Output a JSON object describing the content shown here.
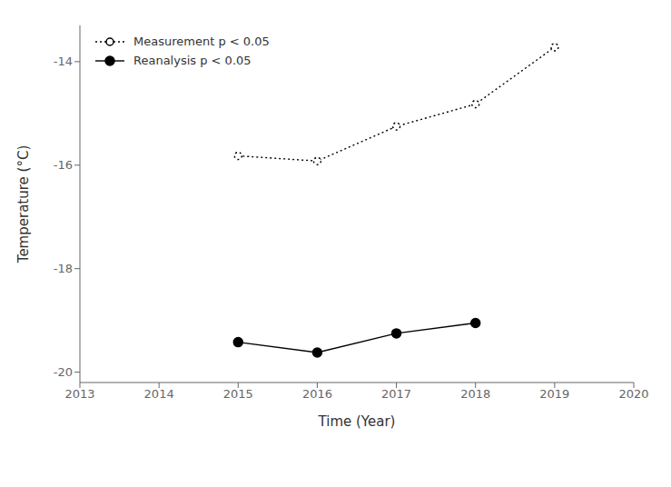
{
  "chart_data": {
    "type": "line",
    "x_label": "Time (Year)",
    "y_label": "Temperature (°C)",
    "x": [
      2015,
      2016,
      2017,
      2018,
      2019
    ],
    "series": [
      {
        "name": "Measurement p < 0.05",
        "color": "#000000",
        "marker": "open",
        "line_style": "dotted",
        "values": [
          -15.82,
          -15.92,
          -15.25,
          -14.82,
          -13.72
        ]
      },
      {
        "name": "Reanalysis p < 0.05",
        "color": "#000000",
        "marker": "filled",
        "line_style": "solid",
        "values": [
          -19.42,
          -19.62,
          -19.25,
          -19.05,
          null
        ]
      }
    ],
    "xlim": [
      2013,
      2020
    ],
    "ylim": [
      -20.2,
      -13.3
    ],
    "xticks": [
      2013,
      2014,
      2015,
      2016,
      2017,
      2018,
      2019,
      2020
    ],
    "yticks": [
      -20,
      -18,
      -16,
      -14
    ],
    "grid": false,
    "legend": "upper left"
  }
}
